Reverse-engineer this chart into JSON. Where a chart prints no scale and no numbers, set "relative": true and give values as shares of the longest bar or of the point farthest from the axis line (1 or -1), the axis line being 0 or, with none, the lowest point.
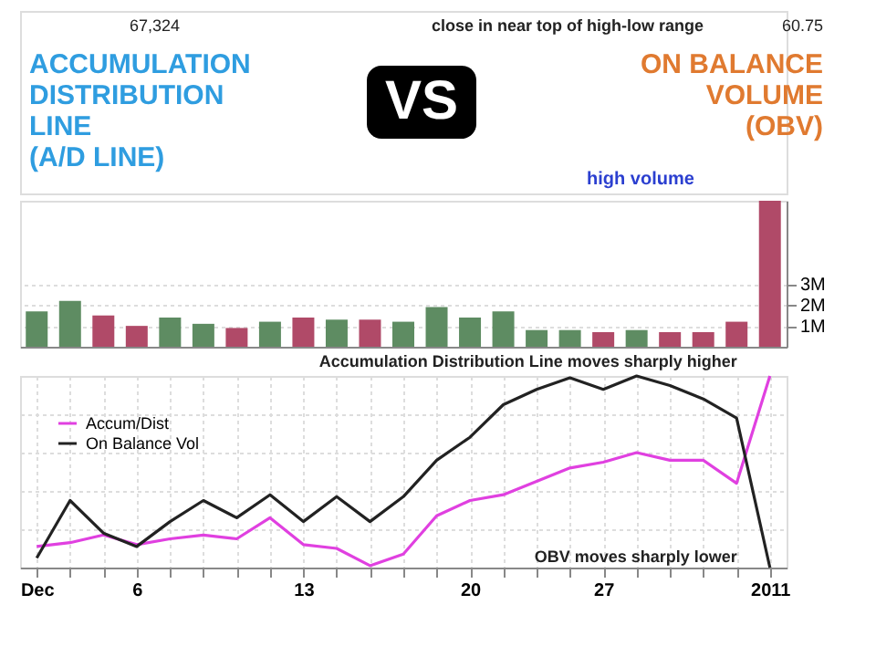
{
  "chart_data": [
    {
      "type": "bar",
      "categories": [
        null,
        null,
        null,
        null,
        null,
        null,
        null,
        null,
        null,
        null,
        null,
        null,
        null,
        null,
        null,
        null,
        null,
        null,
        null,
        null,
        null,
        null,
        null
      ],
      "values": [
        1.7,
        2.2,
        1.5,
        1,
        1.4,
        1.1,
        0.9,
        1.2,
        1.4,
        1.3,
        1.3,
        1.2,
        1.9,
        1.4,
        1.7,
        0.8,
        0.8,
        0.7,
        0.8,
        0.7,
        0.7,
        1.2,
        7
      ],
      "colors": [
        "#5e8c62",
        "#5e8c62",
        "#b04a68",
        "#b04a68",
        "#5e8c62",
        "#5e8c62",
        "#b04a68",
        "#5e8c62",
        "#b04a68",
        "#5e8c62",
        "#b04a68",
        "#5e8c62",
        "#5e8c62",
        "#5e8c62",
        "#5e8c62",
        "#5e8c62",
        "#5e8c62",
        "#b04a68",
        "#5e8c62",
        "#b04a68",
        "#b04a68",
        "#b04a68",
        "#b04a68"
      ],
      "ylim": [
        0,
        7
      ],
      "yticks": [
        {
          "value": 1,
          "label": "1M"
        },
        {
          "value": 2,
          "label": "2M"
        },
        {
          "value": 3,
          "label": "3M"
        }
      ],
      "tick_labels": "y",
      "grid": "y",
      "annotations": [
        "close in near top of high-low range",
        "60.75",
        "67,324",
        "high volume",
        "ACCUMULATION DISTRIBUTION LINE (A/D LINE)",
        "VS",
        "ON BALANCE VOLUME (OBV)"
      ]
    },
    {
      "type": "line",
      "categories": [
        "Dec",
        null,
        null,
        "6",
        null,
        null,
        null,
        null,
        "13",
        null,
        null,
        null,
        null,
        "20",
        null,
        null,
        null,
        "27",
        null,
        null,
        null,
        null,
        "2011"
      ],
      "relative": true,
      "tick_labels": "x",
      "grid": true,
      "legend": "top left",
      "series": [
        {
          "name": "Accum/Dist",
          "color": "#e040e0",
          "values": [
            0.11,
            0.13,
            0.17,
            0.12,
            0.15,
            0.17,
            0.15,
            0.26,
            0.12,
            0.1,
            0.01,
            0.07,
            0.27,
            0.35,
            0.38,
            0.45,
            0.52,
            0.55,
            0.6,
            0.56,
            0.56,
            0.44,
            1
          ]
        },
        {
          "name": "On Balance Vol",
          "color": "#222222",
          "values": [
            0.05,
            0.35,
            0.18,
            0.11,
            0.24,
            0.35,
            0.26,
            0.38,
            0.24,
            0.37,
            0.24,
            0.37,
            0.56,
            0.68,
            0.85,
            0.93,
            0.99,
            0.93,
            1,
            0.95,
            0.88,
            0.78,
            0
          ]
        }
      ],
      "annotations": [
        {
          "text": "Accumulation Distribution Line moves sharply higher",
          "x": "2011",
          "y": 1
        },
        {
          "text": "OBV moves sharply lower",
          "x": "2011",
          "y": 0
        }
      ]
    }
  ]
}
